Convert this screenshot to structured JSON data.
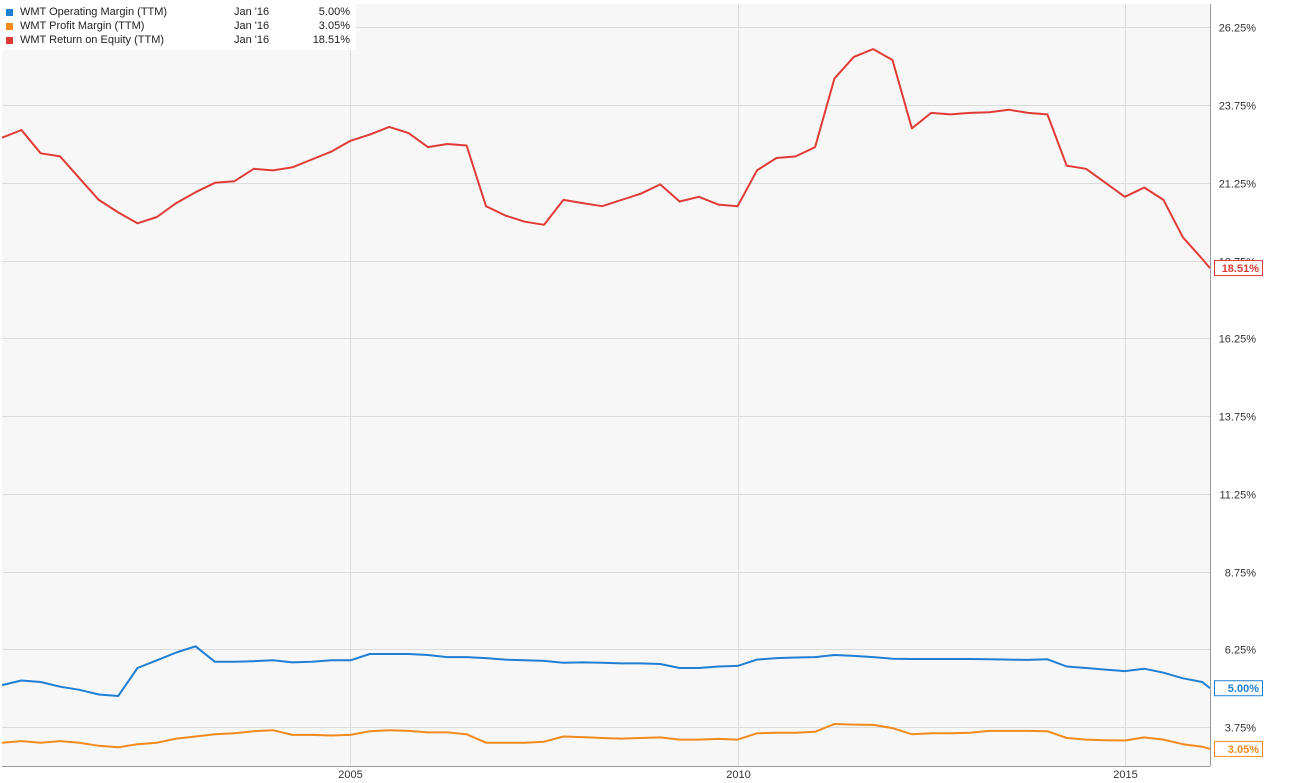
{
  "chart_data": {
    "type": "line",
    "title": "",
    "xlabel": "",
    "ylabel": "",
    "ylim": [
      2.5,
      27.0
    ],
    "xlim": [
      2000.5,
      2016.1
    ],
    "x_ticks": [
      2005,
      2010,
      2015
    ],
    "x_tick_labels": [
      "2005",
      "2010",
      "2015"
    ],
    "y_ticks": [
      3.75,
      6.25,
      8.75,
      11.25,
      13.75,
      16.25,
      18.75,
      21.25,
      23.75,
      26.25
    ],
    "y_tick_labels": [
      "3.75%",
      "6.25%",
      "8.75%",
      "11.25%",
      "13.75%",
      "16.25%",
      "18.75%",
      "21.25%",
      "23.75%",
      "26.25%"
    ],
    "grid": true,
    "legend_position": "top-left",
    "series": [
      {
        "name": "WMT Operating Margin (TTM)",
        "color": "#1f7fd4",
        "legend_date": "Jan '16",
        "legend_value": "5.00%",
        "end_label": "5.00%",
        "points": [
          [
            2000.5,
            5.1
          ],
          [
            2000.75,
            5.25
          ],
          [
            2001.0,
            5.2
          ],
          [
            2001.25,
            5.05
          ],
          [
            2001.5,
            4.95
          ],
          [
            2001.75,
            4.8
          ],
          [
            2002.0,
            4.75
          ],
          [
            2002.25,
            5.65
          ],
          [
            2002.5,
            5.9
          ],
          [
            2002.75,
            6.15
          ],
          [
            2003.0,
            6.35
          ],
          [
            2003.25,
            5.85
          ],
          [
            2003.5,
            5.85
          ],
          [
            2003.75,
            5.87
          ],
          [
            2004.0,
            5.9
          ],
          [
            2004.25,
            5.83
          ],
          [
            2004.5,
            5.85
          ],
          [
            2004.75,
            5.9
          ],
          [
            2005.0,
            5.9
          ],
          [
            2005.25,
            6.1
          ],
          [
            2005.5,
            6.1
          ],
          [
            2005.75,
            6.1
          ],
          [
            2006.0,
            6.07
          ],
          [
            2006.25,
            6.0
          ],
          [
            2006.5,
            6.0
          ],
          [
            2006.75,
            5.97
          ],
          [
            2007.0,
            5.92
          ],
          [
            2007.25,
            5.9
          ],
          [
            2007.5,
            5.88
          ],
          [
            2007.75,
            5.82
          ],
          [
            2008.0,
            5.83
          ],
          [
            2008.25,
            5.82
          ],
          [
            2008.5,
            5.8
          ],
          [
            2008.75,
            5.8
          ],
          [
            2009.0,
            5.78
          ],
          [
            2009.25,
            5.65
          ],
          [
            2009.5,
            5.65
          ],
          [
            2009.75,
            5.7
          ],
          [
            2010.0,
            5.72
          ],
          [
            2010.25,
            5.92
          ],
          [
            2010.5,
            5.97
          ],
          [
            2010.75,
            5.99
          ],
          [
            2011.0,
            6.0
          ],
          [
            2011.25,
            6.07
          ],
          [
            2011.5,
            6.04
          ],
          [
            2011.75,
            6.0
          ],
          [
            2012.0,
            5.95
          ],
          [
            2012.25,
            5.94
          ],
          [
            2012.5,
            5.94
          ],
          [
            2012.75,
            5.94
          ],
          [
            2013.0,
            5.94
          ],
          [
            2013.25,
            5.93
          ],
          [
            2013.5,
            5.92
          ],
          [
            2013.75,
            5.91
          ],
          [
            2014.0,
            5.93
          ],
          [
            2014.25,
            5.7
          ],
          [
            2014.5,
            5.65
          ],
          [
            2014.75,
            5.6
          ],
          [
            2015.0,
            5.55
          ],
          [
            2015.25,
            5.63
          ],
          [
            2015.5,
            5.5
          ],
          [
            2015.75,
            5.32
          ],
          [
            2016.0,
            5.2
          ],
          [
            2016.1,
            5.0
          ]
        ]
      },
      {
        "name": "WMT Profit Margin (TTM)",
        "color": "#f28a1e",
        "legend_date": "Jan '16",
        "legend_value": "3.05%",
        "end_label": "3.05%",
        "points": [
          [
            2000.5,
            3.25
          ],
          [
            2000.75,
            3.3
          ],
          [
            2001.0,
            3.25
          ],
          [
            2001.25,
            3.3
          ],
          [
            2001.5,
            3.25
          ],
          [
            2001.75,
            3.15
          ],
          [
            2002.0,
            3.1
          ],
          [
            2002.25,
            3.2
          ],
          [
            2002.5,
            3.25
          ],
          [
            2002.75,
            3.38
          ],
          [
            2003.0,
            3.45
          ],
          [
            2003.25,
            3.52
          ],
          [
            2003.5,
            3.55
          ],
          [
            2003.75,
            3.62
          ],
          [
            2004.0,
            3.65
          ],
          [
            2004.25,
            3.5
          ],
          [
            2004.5,
            3.5
          ],
          [
            2004.75,
            3.48
          ],
          [
            2005.0,
            3.5
          ],
          [
            2005.25,
            3.62
          ],
          [
            2005.5,
            3.65
          ],
          [
            2005.75,
            3.63
          ],
          [
            2006.0,
            3.58
          ],
          [
            2006.25,
            3.58
          ],
          [
            2006.5,
            3.52
          ],
          [
            2006.75,
            3.25
          ],
          [
            2007.0,
            3.25
          ],
          [
            2007.25,
            3.25
          ],
          [
            2007.5,
            3.28
          ],
          [
            2007.75,
            3.45
          ],
          [
            2008.0,
            3.43
          ],
          [
            2008.25,
            3.4
          ],
          [
            2008.5,
            3.38
          ],
          [
            2008.75,
            3.4
          ],
          [
            2009.0,
            3.42
          ],
          [
            2009.25,
            3.35
          ],
          [
            2009.5,
            3.35
          ],
          [
            2009.75,
            3.37
          ],
          [
            2010.0,
            3.35
          ],
          [
            2010.25,
            3.55
          ],
          [
            2010.5,
            3.57
          ],
          [
            2010.75,
            3.57
          ],
          [
            2011.0,
            3.6
          ],
          [
            2011.25,
            3.85
          ],
          [
            2011.5,
            3.83
          ],
          [
            2011.75,
            3.82
          ],
          [
            2012.0,
            3.72
          ],
          [
            2012.25,
            3.52
          ],
          [
            2012.5,
            3.55
          ],
          [
            2012.75,
            3.55
          ],
          [
            2013.0,
            3.57
          ],
          [
            2013.25,
            3.63
          ],
          [
            2013.5,
            3.63
          ],
          [
            2013.75,
            3.63
          ],
          [
            2014.0,
            3.62
          ],
          [
            2014.25,
            3.4
          ],
          [
            2014.5,
            3.35
          ],
          [
            2014.75,
            3.33
          ],
          [
            2015.0,
            3.32
          ],
          [
            2015.25,
            3.42
          ],
          [
            2015.5,
            3.35
          ],
          [
            2015.75,
            3.2
          ],
          [
            2016.0,
            3.12
          ],
          [
            2016.1,
            3.05
          ]
        ]
      },
      {
        "name": "WMT Return on Equity (TTM)",
        "color": "#e03c37",
        "legend_date": "Jan '16",
        "legend_value": "18.51%",
        "end_label": "18.51%",
        "points": [
          [
            2000.5,
            22.7
          ],
          [
            2000.75,
            22.95
          ],
          [
            2001.0,
            22.2
          ],
          [
            2001.25,
            22.1
          ],
          [
            2001.5,
            21.4
          ],
          [
            2001.75,
            20.7
          ],
          [
            2002.0,
            20.3
          ],
          [
            2002.25,
            19.95
          ],
          [
            2002.5,
            20.15
          ],
          [
            2002.75,
            20.6
          ],
          [
            2003.0,
            20.95
          ],
          [
            2003.25,
            21.25
          ],
          [
            2003.5,
            21.3
          ],
          [
            2003.75,
            21.7
          ],
          [
            2004.0,
            21.65
          ],
          [
            2004.25,
            21.75
          ],
          [
            2004.5,
            22.0
          ],
          [
            2004.75,
            22.25
          ],
          [
            2005.0,
            22.6
          ],
          [
            2005.25,
            22.8
          ],
          [
            2005.5,
            23.05
          ],
          [
            2005.75,
            22.85
          ],
          [
            2006.0,
            22.4
          ],
          [
            2006.25,
            22.5
          ],
          [
            2006.5,
            22.45
          ],
          [
            2006.75,
            20.5
          ],
          [
            2007.0,
            20.2
          ],
          [
            2007.25,
            20.0
          ],
          [
            2007.5,
            19.9
          ],
          [
            2007.75,
            20.7
          ],
          [
            2008.0,
            20.6
          ],
          [
            2008.25,
            20.5
          ],
          [
            2008.75,
            20.9
          ],
          [
            2009.0,
            21.2
          ],
          [
            2009.25,
            20.65
          ],
          [
            2009.5,
            20.8
          ],
          [
            2009.75,
            20.55
          ],
          [
            2010.0,
            20.5
          ],
          [
            2010.25,
            21.65
          ],
          [
            2010.5,
            22.05
          ],
          [
            2010.75,
            22.1
          ],
          [
            2011.0,
            22.4
          ],
          [
            2011.25,
            24.6
          ],
          [
            2011.5,
            25.3
          ],
          [
            2011.75,
            25.55
          ],
          [
            2012.0,
            25.2
          ],
          [
            2012.25,
            23.0
          ],
          [
            2012.5,
            23.5
          ],
          [
            2012.75,
            23.45
          ],
          [
            2013.0,
            23.5
          ],
          [
            2013.25,
            23.52
          ],
          [
            2013.5,
            23.6
          ],
          [
            2013.75,
            23.5
          ],
          [
            2014.0,
            23.45
          ],
          [
            2014.25,
            21.8
          ],
          [
            2014.5,
            21.7
          ],
          [
            2014.75,
            21.25
          ],
          [
            2015.0,
            20.8
          ],
          [
            2015.25,
            21.1
          ],
          [
            2015.5,
            20.7
          ],
          [
            2015.75,
            19.5
          ],
          [
            2016.0,
            18.8
          ],
          [
            2016.1,
            18.51
          ]
        ]
      }
    ]
  }
}
